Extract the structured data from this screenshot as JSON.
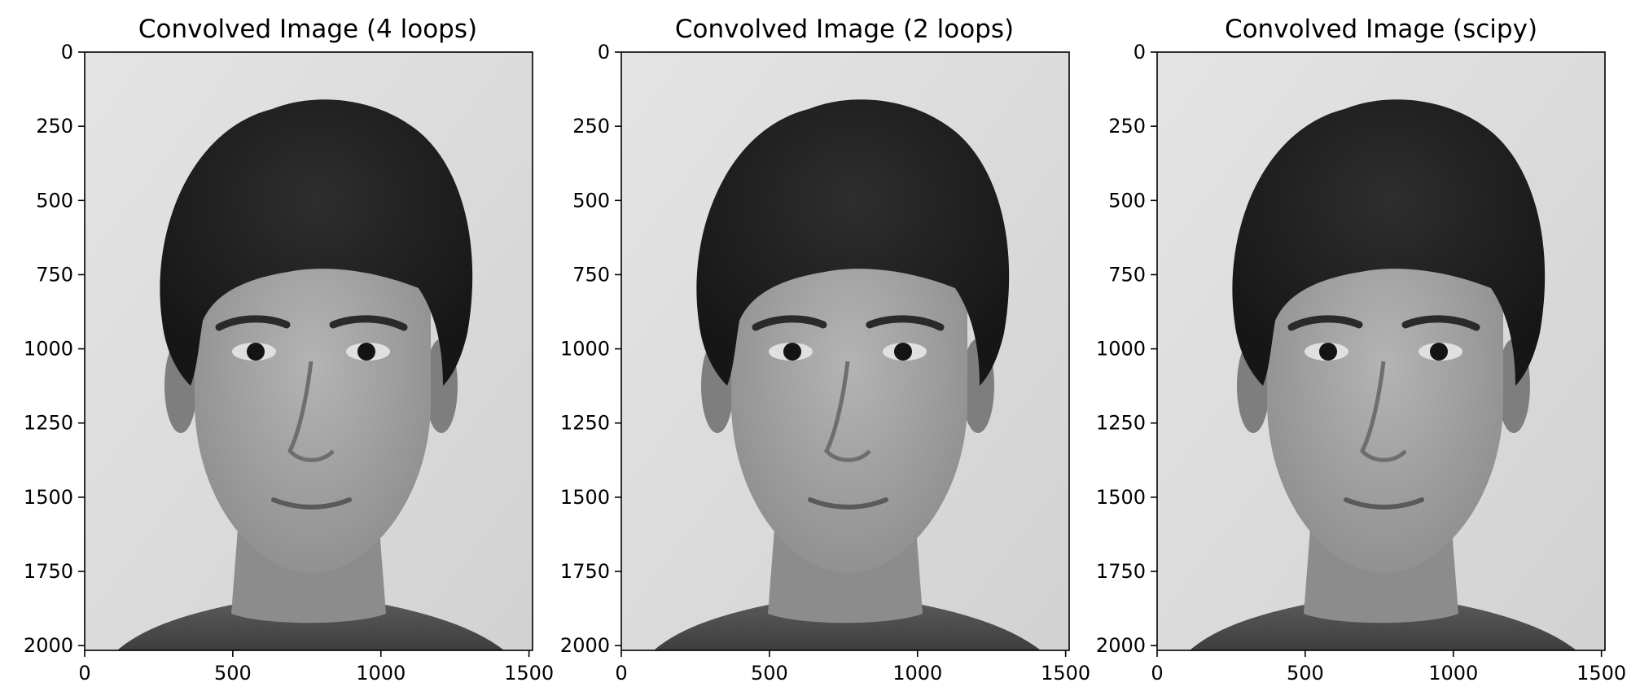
{
  "figure": {
    "panels": [
      {
        "title": "Convolved Image (4 loops)",
        "image": "grayscale-portrait-photo",
        "x_ticks": [
          "0",
          "500",
          "1000",
          "1500"
        ],
        "y_ticks": [
          "0",
          "250",
          "500",
          "750",
          "1000",
          "1250",
          "1500",
          "1750",
          "2000"
        ]
      },
      {
        "title": "Convolved Image (2 loops)",
        "image": "grayscale-portrait-photo",
        "x_ticks": [
          "0",
          "500",
          "1000",
          "1500"
        ],
        "y_ticks": [
          "0",
          "250",
          "500",
          "750",
          "1000",
          "1250",
          "1500",
          "1750",
          "2000"
        ]
      },
      {
        "title": "Convolved Image (scipy)",
        "image": "grayscale-portrait-photo",
        "x_ticks": [
          "0",
          "500",
          "1000",
          "1500"
        ],
        "y_ticks": [
          "0",
          "250",
          "500",
          "750",
          "1000",
          "1250",
          "1500",
          "1750",
          "2000"
        ]
      }
    ],
    "x_tick_values": [
      0,
      500,
      1000,
      1500
    ],
    "y_tick_values": [
      0,
      250,
      500,
      750,
      1000,
      1250,
      1500,
      1750,
      2000
    ],
    "image_extent": {
      "width": 1512,
      "height": 2016
    }
  }
}
